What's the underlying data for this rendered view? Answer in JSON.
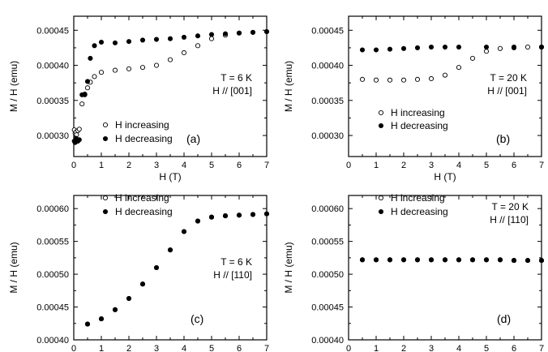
{
  "chart_data": [
    {
      "panel": "(a)",
      "type": "scatter",
      "xlabel": "H (T)",
      "ylabel": "M / H (emu)",
      "xlim": [
        0,
        7
      ],
      "ylim": [
        0.00027,
        0.00047
      ],
      "xticks": [
        "0",
        "1",
        "2",
        "3",
        "4",
        "5",
        "6",
        "7"
      ],
      "yticks": [
        {
          "value": 0.0003,
          "label": "0.00030"
        },
        {
          "value": 0.00035,
          "label": "0.00035"
        },
        {
          "value": 0.0004,
          "label": "0.00040"
        },
        {
          "value": 0.00045,
          "label": "0.00045"
        }
      ],
      "annotation": [
        "T = 6 K",
        "H // [001]"
      ],
      "legend": "bottom-left",
      "series": [
        {
          "name": "H increasing",
          "marker": "open",
          "x": [
            0.02,
            0.05,
            0.08,
            0.1,
            0.15,
            0.2,
            0.3,
            0.4,
            0.5,
            0.6,
            0.75,
            1.0,
            1.5,
            2.0,
            2.5,
            3.0,
            3.5,
            4.0,
            4.5,
            5.0,
            5.5,
            6.0,
            6.5,
            7.0
          ],
          "y": [
            0.000308,
            0.000303,
            0.000305,
            0.000301,
            0.000307,
            0.000309,
            0.000345,
            0.000358,
            0.000368,
            0.000376,
            0.000384,
            0.00039,
            0.000393,
            0.000395,
            0.000397,
            0.0004,
            0.000408,
            0.000418,
            0.000428,
            0.000438,
            0.000443,
            0.000446,
            0.000447,
            0.000448
          ]
        },
        {
          "name": "H decreasing",
          "marker": "filled",
          "x": [
            0.02,
            0.05,
            0.08,
            0.1,
            0.15,
            0.2,
            0.3,
            0.4,
            0.5,
            0.6,
            0.75,
            1.0,
            1.5,
            2.0,
            2.5,
            3.0,
            3.5,
            4.0,
            4.5,
            5.0,
            5.5,
            6.0,
            6.5,
            7.0
          ],
          "y": [
            0.000292,
            0.00029,
            0.000296,
            0.000293,
            0.000292,
            0.000294,
            0.000358,
            0.000359,
            0.000377,
            0.00041,
            0.000428,
            0.000433,
            0.000432,
            0.000434,
            0.000436,
            0.000437,
            0.000438,
            0.00044,
            0.000442,
            0.000444,
            0.000445,
            0.000446,
            0.000447,
            0.000448
          ]
        }
      ]
    },
    {
      "panel": "(b)",
      "type": "scatter",
      "xlabel": "H (T)",
      "ylabel": "M / H (emu)",
      "xlim": [
        0,
        7
      ],
      "ylim": [
        0.00027,
        0.00047
      ],
      "xticks": [
        "0",
        "1",
        "2",
        "3",
        "4",
        "5",
        "6",
        "7"
      ],
      "yticks": [
        {
          "value": 0.0003,
          "label": "0.00030"
        },
        {
          "value": 0.00035,
          "label": "0.00035"
        },
        {
          "value": 0.0004,
          "label": "0.00040"
        },
        {
          "value": 0.00045,
          "label": "0.00045"
        }
      ],
      "annotation": [
        "T = 20 K",
        "H // [001]"
      ],
      "legend": "bottom-left",
      "series": [
        {
          "name": "H increasing",
          "marker": "open",
          "x": [
            0.5,
            1.0,
            1.5,
            2.0,
            2.5,
            3.0,
            3.5,
            4.0,
            4.5,
            5.0,
            5.5,
            6.0,
            6.5,
            7.0
          ],
          "y": [
            0.00038,
            0.000379,
            0.000379,
            0.000379,
            0.00038,
            0.000381,
            0.000386,
            0.000397,
            0.00041,
            0.00042,
            0.000424,
            0.000425,
            0.000426,
            0.000426
          ]
        },
        {
          "name": "H decreasing",
          "marker": "filled",
          "x": [
            0.5,
            1.0,
            1.5,
            2.0,
            2.5,
            3.0,
            3.5,
            4.0,
            5.0,
            6.0,
            7.0
          ],
          "y": [
            0.000422,
            0.000422,
            0.000423,
            0.000424,
            0.000425,
            0.000426,
            0.000426,
            0.000426,
            0.000426,
            0.000426,
            0.000426
          ]
        }
      ]
    },
    {
      "panel": "(c)",
      "type": "scatter",
      "xlabel": "H (T)",
      "ylabel": "M / H (emu)",
      "xlim": [
        0,
        7
      ],
      "ylim": [
        0.0004,
        0.00062
      ],
      "xticks": [
        "0",
        "1",
        "2",
        "3",
        "4",
        "5",
        "6",
        "7"
      ],
      "yticks": [
        {
          "value": 0.0004,
          "label": "0.00040"
        },
        {
          "value": 0.00045,
          "label": "0.00045"
        },
        {
          "value": 0.0005,
          "label": "0.00050"
        },
        {
          "value": 0.00055,
          "label": "0.00055"
        },
        {
          "value": 0.0006,
          "label": "0.00060"
        }
      ],
      "annotation": [
        "T = 6 K",
        "H // [110]"
      ],
      "legend": "top-left",
      "series": [
        {
          "name": "H increasing",
          "marker": "open",
          "x": [
            0.5,
            1.0,
            1.5,
            2.0,
            2.5,
            3.0,
            3.5,
            4.0,
            4.5,
            5.0,
            5.5,
            6.0,
            6.5,
            7.0
          ],
          "y": [
            0.000424,
            0.000432,
            0.000446,
            0.000463,
            0.000485,
            0.00051,
            0.000537,
            0.000565,
            0.000581,
            0.000587,
            0.000589,
            0.00059,
            0.000591,
            0.000592
          ]
        },
        {
          "name": "H decreasing",
          "marker": "filled",
          "x": [
            0.5,
            1.0,
            1.5,
            2.0,
            2.5,
            3.0,
            3.5,
            4.0,
            4.5,
            5.0,
            5.5,
            6.0,
            6.5,
            7.0
          ],
          "y": [
            0.000424,
            0.000432,
            0.000446,
            0.000463,
            0.000485,
            0.00051,
            0.000537,
            0.000565,
            0.000581,
            0.000587,
            0.000589,
            0.00059,
            0.000591,
            0.000592
          ]
        }
      ]
    },
    {
      "panel": "(d)",
      "type": "scatter",
      "xlabel": "H (T)",
      "ylabel": "M / H (emu)",
      "xlim": [
        0,
        7
      ],
      "ylim": [
        0.0004,
        0.00062
      ],
      "xticks": [
        "0",
        "1",
        "2",
        "3",
        "4",
        "5",
        "6",
        "7"
      ],
      "yticks": [
        {
          "value": 0.0004,
          "label": "0.00040"
        },
        {
          "value": 0.00045,
          "label": "0.00045"
        },
        {
          "value": 0.0005,
          "label": "0.00050"
        },
        {
          "value": 0.00055,
          "label": "0.00055"
        },
        {
          "value": 0.0006,
          "label": "0.00060"
        }
      ],
      "annotation": [
        "T = 20 K",
        "H // [110]"
      ],
      "legend": "top-left",
      "series": [
        {
          "name": "H increasing",
          "marker": "open",
          "x": [
            0.5,
            1.0,
            1.5,
            2.0,
            2.5,
            3.0,
            3.5,
            4.0,
            4.5,
            5.0,
            5.5,
            6.0,
            6.5,
            7.0
          ],
          "y": [
            0.000522,
            0.000522,
            0.000522,
            0.000522,
            0.000522,
            0.000522,
            0.000522,
            0.000522,
            0.000522,
            0.000522,
            0.000522,
            0.000521,
            0.000521,
            0.000521
          ]
        },
        {
          "name": "H decreasing",
          "marker": "filled",
          "x": [
            0.5,
            1.0,
            1.5,
            2.0,
            2.5,
            3.0,
            3.5,
            4.0,
            4.5,
            5.0,
            5.5,
            6.0,
            6.5,
            7.0
          ],
          "y": [
            0.000522,
            0.000522,
            0.000522,
            0.000522,
            0.000522,
            0.000522,
            0.000522,
            0.000522,
            0.000522,
            0.000522,
            0.000522,
            0.000521,
            0.000521,
            0.000521
          ]
        }
      ]
    }
  ]
}
